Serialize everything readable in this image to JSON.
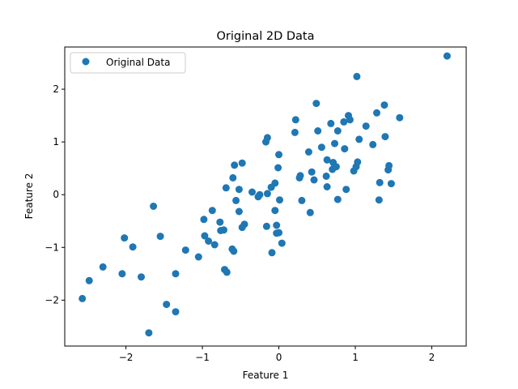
{
  "chart_data": {
    "type": "scatter",
    "title": "Original 2D Data",
    "xlabel": "Feature 1",
    "ylabel": "Feature 2",
    "xlim": [
      -2.8,
      2.45
    ],
    "ylim": [
      -2.87,
      2.8
    ],
    "xticks": [
      -2,
      -1,
      0,
      1,
      2
    ],
    "yticks": [
      -2,
      -1,
      0,
      1,
      2
    ],
    "grid": false,
    "legend_position": "top-left",
    "color": "#1f77b4",
    "series": [
      {
        "name": "Original Data",
        "points": [
          [
            -2.57,
            -1.97
          ],
          [
            -2.48,
            -1.63
          ],
          [
            -2.3,
            -1.37
          ],
          [
            -2.05,
            -1.5
          ],
          [
            -2.02,
            -0.82
          ],
          [
            -1.91,
            -0.99
          ],
          [
            -1.8,
            -1.56
          ],
          [
            -1.64,
            -0.22
          ],
          [
            -1.55,
            -0.79
          ],
          [
            -1.47,
            -2.08
          ],
          [
            -1.35,
            -2.22
          ],
          [
            -1.35,
            -1.5
          ],
          [
            -1.7,
            -2.62
          ],
          [
            -1.22,
            -1.05
          ],
          [
            -1.05,
            -1.18
          ],
          [
            -0.98,
            -0.47
          ],
          [
            -0.97,
            -0.78
          ],
          [
            -0.92,
            -0.88
          ],
          [
            -0.87,
            -0.3
          ],
          [
            -0.84,
            -0.95
          ],
          [
            -0.77,
            -0.52
          ],
          [
            -0.76,
            -0.68
          ],
          [
            -0.72,
            -0.67
          ],
          [
            -0.71,
            -1.42
          ],
          [
            -0.68,
            -1.47
          ],
          [
            -0.69,
            0.13
          ],
          [
            -0.61,
            -1.03
          ],
          [
            -0.59,
            -1.07
          ],
          [
            -0.6,
            0.32
          ],
          [
            -0.58,
            0.56
          ],
          [
            -0.56,
            -0.11
          ],
          [
            -0.52,
            0.1
          ],
          [
            -0.52,
            -0.32
          ],
          [
            -0.48,
            -0.62
          ],
          [
            -0.48,
            0.6
          ],
          [
            -0.45,
            -0.56
          ],
          [
            -0.35,
            0.05
          ],
          [
            -0.27,
            -0.04
          ],
          [
            -0.25,
            0.0
          ],
          [
            -0.17,
            1.0
          ],
          [
            -0.15,
            1.08
          ],
          [
            -0.15,
            0.02
          ],
          [
            -0.16,
            -0.6
          ],
          [
            -0.1,
            0.14
          ],
          [
            -0.09,
            -1.1
          ],
          [
            -0.05,
            0.22
          ],
          [
            -0.05,
            -0.3
          ],
          [
            -0.03,
            -0.58
          ],
          [
            -0.03,
            -0.73
          ],
          [
            0.0,
            -0.72
          ],
          [
            -0.01,
            0.51
          ],
          [
            0.0,
            0.76
          ],
          [
            0.01,
            -0.1
          ],
          [
            0.04,
            -0.92
          ],
          [
            0.22,
            1.42
          ],
          [
            0.21,
            1.18
          ],
          [
            0.27,
            0.32
          ],
          [
            0.28,
            0.36
          ],
          [
            0.3,
            -0.11
          ],
          [
            0.39,
            0.81
          ],
          [
            0.41,
            -0.34
          ],
          [
            0.43,
            0.43
          ],
          [
            0.46,
            0.28
          ],
          [
            0.49,
            1.73
          ],
          [
            0.51,
            1.21
          ],
          [
            0.56,
            0.9
          ],
          [
            0.62,
            0.35
          ],
          [
            0.63,
            0.66
          ],
          [
            0.63,
            0.15
          ],
          [
            0.68,
            1.35
          ],
          [
            0.7,
            0.48
          ],
          [
            0.71,
            0.61
          ],
          [
            0.73,
            0.53
          ],
          [
            0.73,
            0.97
          ],
          [
            0.75,
            0.53
          ],
          [
            0.77,
            1.21
          ],
          [
            0.77,
            -0.09
          ],
          [
            0.85,
            1.38
          ],
          [
            0.86,
            0.87
          ],
          [
            0.88,
            0.1
          ],
          [
            0.91,
            1.5
          ],
          [
            0.93,
            1.42
          ],
          [
            0.98,
            0.45
          ],
          [
            1.01,
            0.53
          ],
          [
            1.03,
            0.62
          ],
          [
            1.02,
            2.24
          ],
          [
            1.05,
            1.05
          ],
          [
            1.14,
            1.3
          ],
          [
            1.23,
            0.95
          ],
          [
            1.28,
            1.55
          ],
          [
            1.32,
            0.23
          ],
          [
            1.31,
            -0.1
          ],
          [
            1.38,
            1.7
          ],
          [
            1.39,
            1.1
          ],
          [
            1.43,
            0.47
          ],
          [
            1.44,
            0.55
          ],
          [
            1.47,
            0.21
          ],
          [
            1.58,
            1.46
          ],
          [
            2.2,
            2.63
          ]
        ]
      }
    ]
  }
}
